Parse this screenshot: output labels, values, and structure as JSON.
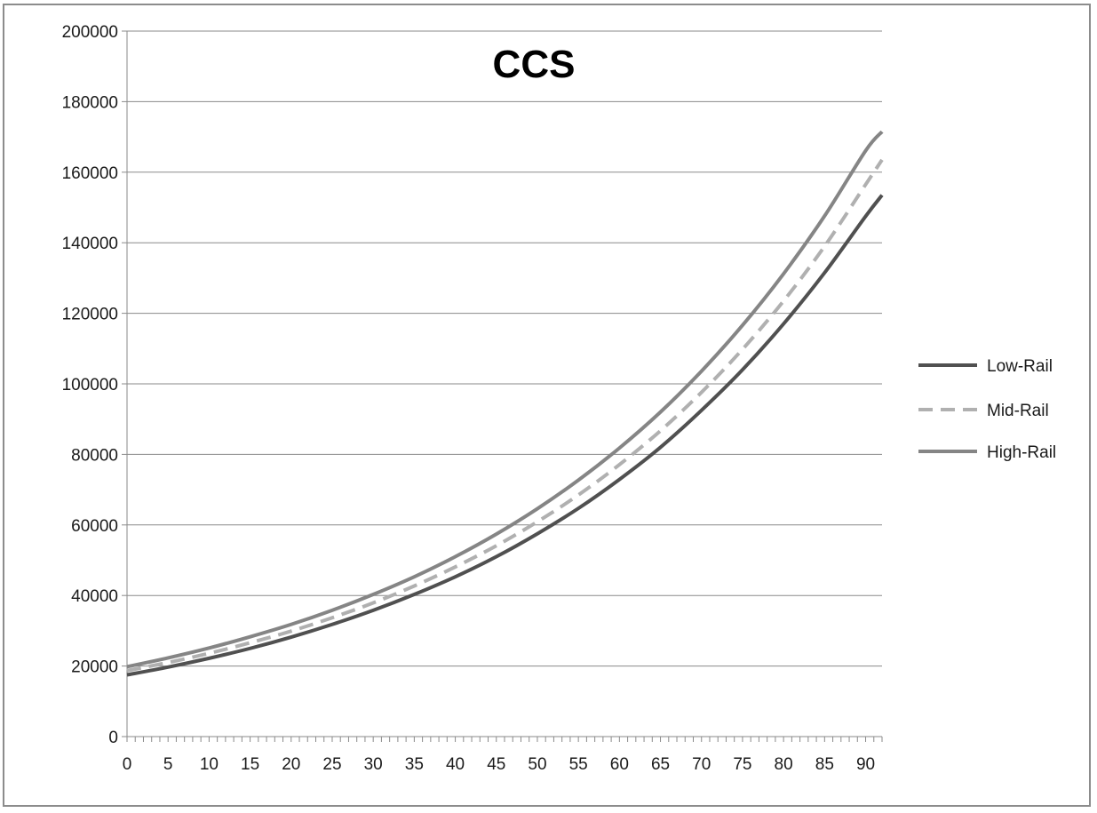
{
  "chart_data": {
    "type": "line",
    "title": "CCS",
    "xlabel": "",
    "ylabel": "",
    "xlim": [
      0,
      92
    ],
    "ylim": [
      0,
      200000
    ],
    "y_ticks": [
      0,
      20000,
      40000,
      60000,
      80000,
      100000,
      120000,
      140000,
      160000,
      180000,
      200000
    ],
    "y_tick_labels": [
      "0",
      "20000",
      "40000",
      "60000",
      "80000",
      "100000",
      "120000",
      "140000",
      "160000",
      "180000",
      "200000"
    ],
    "x_ticks": [
      0,
      5,
      10,
      15,
      20,
      25,
      30,
      35,
      40,
      45,
      50,
      55,
      60,
      65,
      70,
      75,
      80,
      85,
      90
    ],
    "x_tick_labels": [
      "0",
      "5",
      "10",
      "15",
      "20",
      "25",
      "30",
      "35",
      "40",
      "45",
      "50",
      "55",
      "60",
      "65",
      "70",
      "75",
      "80",
      "85",
      "90"
    ],
    "grid": "horizontal",
    "legend_position": "right",
    "x": [
      0,
      5,
      10,
      15,
      20,
      25,
      30,
      35,
      40,
      45,
      50,
      55,
      60,
      65,
      70,
      75,
      80,
      85,
      90,
      92
    ],
    "series": [
      {
        "name": "Low-Rail",
        "color": "#505050",
        "dash": "solid",
        "values": [
          17500,
          19700,
          22200,
          25000,
          28200,
          31800,
          35800,
          40300,
          45300,
          51000,
          57500,
          64700,
          72900,
          82000,
          92500,
          104000,
          117000,
          131500,
          147500,
          153500
        ]
      },
      {
        "name": "Mid-Rail",
        "color": "#b0b0b0",
        "dash": "dashed",
        "values": [
          18700,
          21000,
          23600,
          26600,
          29900,
          33700,
          37900,
          42700,
          48100,
          54100,
          60900,
          68500,
          77100,
          86700,
          97600,
          109800,
          123500,
          139000,
          156500,
          163500
        ]
      },
      {
        "name": "High-Rail",
        "color": "#858585",
        "dash": "solid",
        "values": [
          19800,
          22300,
          25100,
          28300,
          31800,
          35800,
          40300,
          45300,
          51000,
          57400,
          64600,
          72700,
          81800,
          92000,
          103600,
          116600,
          131200,
          147600,
          166100,
          171500
        ]
      }
    ]
  }
}
